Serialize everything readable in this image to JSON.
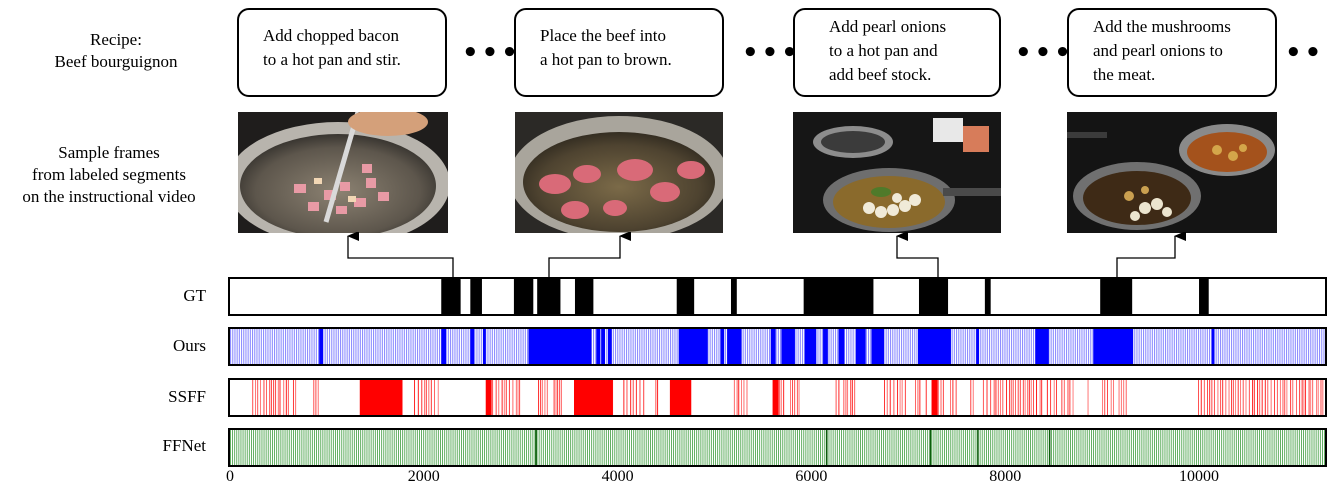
{
  "recipe": {
    "line1": "Recipe:",
    "line2": "Beef bourguignon"
  },
  "frames_caption": {
    "line1": "Sample frames",
    "line2": "from labeled segments",
    "line3": "on the instructional video"
  },
  "steps": [
    {
      "line1": "Add chopped bacon",
      "line2": "to a hot pan and stir.",
      "line3": ""
    },
    {
      "line1": "Place the beef into",
      "line2": "a hot pan to brown.",
      "line3": ""
    },
    {
      "line1": "Add pearl onions",
      "line2": "to a hot pan and",
      "line3": "add beef stock."
    },
    {
      "line1": "Add the mushrooms",
      "line2": "and pearl onions to",
      "line3": "the meat."
    }
  ],
  "ellipsis": "•••",
  "frames": [
    {
      "icon": "bacon-in-pan-photo"
    },
    {
      "icon": "beef-browning-photo"
    },
    {
      "icon": "onions-and-stock-photo"
    },
    {
      "icon": "mushrooms-onions-meat-photo"
    }
  ],
  "colors": {
    "gt": "#000000",
    "ours": "#0000ff",
    "ours_light": "#8f8fff",
    "ssff": "#ff0000",
    "ffnet": "#1b8a1b",
    "ffnet_light": "#a9dca9"
  },
  "chart_data": {
    "type": "timeline",
    "x_range": [
      0,
      11300
    ],
    "x_ticks": [
      "0",
      "2000",
      "4000",
      "6000",
      "8000",
      "10000"
    ],
    "x_tick_values": [
      0,
      2000,
      4000,
      6000,
      8000,
      10000
    ],
    "series": [
      {
        "name": "GT",
        "style": "segments",
        "segments": [
          [
            2180,
            2380
          ],
          [
            2480,
            2600
          ],
          [
            2930,
            3130
          ],
          [
            3170,
            3410
          ],
          [
            3560,
            3750
          ],
          [
            4610,
            4790
          ],
          [
            5170,
            5230
          ],
          [
            5920,
            6640
          ],
          [
            7110,
            7410
          ],
          [
            7790,
            7850
          ],
          [
            8980,
            9310
          ],
          [
            10000,
            10100
          ]
        ]
      },
      {
        "name": "Ours",
        "style": "dense",
        "dense_segments": [
          [
            920,
            960
          ],
          [
            2180,
            2230
          ],
          [
            2480,
            2520
          ],
          [
            2610,
            2640
          ],
          [
            3080,
            3730
          ],
          [
            3780,
            3820
          ],
          [
            3830,
            3870
          ],
          [
            3900,
            3940
          ],
          [
            4630,
            4930
          ],
          [
            5060,
            5100
          ],
          [
            5130,
            5280
          ],
          [
            5580,
            5630
          ],
          [
            5690,
            5830
          ],
          [
            5930,
            6050
          ],
          [
            6120,
            6170
          ],
          [
            6280,
            6340
          ],
          [
            6460,
            6560
          ],
          [
            6620,
            6750
          ],
          [
            7100,
            7440
          ],
          [
            7700,
            7730
          ],
          [
            8310,
            8450
          ],
          [
            8910,
            9320
          ],
          [
            10130,
            10160
          ]
        ]
      },
      {
        "name": "SSFF",
        "style": "sparse",
        "clusters": [
          [
            230,
            610
          ],
          [
            650,
            700
          ],
          [
            860,
            910
          ],
          [
            1340,
            1780
          ],
          [
            1900,
            2150
          ],
          [
            2640,
            3000
          ],
          [
            3180,
            3280
          ],
          [
            3340,
            3420
          ],
          [
            3550,
            3950
          ],
          [
            4060,
            4280
          ],
          [
            4390,
            4420
          ],
          [
            4540,
            4760
          ],
          [
            5200,
            5340
          ],
          [
            5600,
            5730
          ],
          [
            5780,
            5870
          ],
          [
            6250,
            6290
          ],
          [
            6330,
            6450
          ],
          [
            6750,
            6970
          ],
          [
            7070,
            7140
          ],
          [
            7180,
            7210
          ],
          [
            7240,
            7360
          ],
          [
            7430,
            7510
          ],
          [
            7640,
            7680
          ],
          [
            7770,
            8380
          ],
          [
            8430,
            8540
          ],
          [
            8580,
            8710
          ],
          [
            8850,
            8870
          ],
          [
            9000,
            9120
          ],
          [
            9170,
            9250
          ],
          [
            9990,
            11300
          ]
        ],
        "solid": [
          [
            1340,
            1780
          ],
          [
            2640,
            2700
          ],
          [
            3550,
            3950
          ],
          [
            4540,
            4760
          ],
          [
            5600,
            5660
          ],
          [
            7240,
            7300
          ]
        ]
      },
      {
        "name": "FFNet",
        "style": "uniform",
        "dark_positions": [
          3150,
          6150,
          7220,
          7710,
          8450
        ]
      }
    ],
    "steps_at": [
      2300,
      3300,
      7250,
      9150
    ]
  }
}
